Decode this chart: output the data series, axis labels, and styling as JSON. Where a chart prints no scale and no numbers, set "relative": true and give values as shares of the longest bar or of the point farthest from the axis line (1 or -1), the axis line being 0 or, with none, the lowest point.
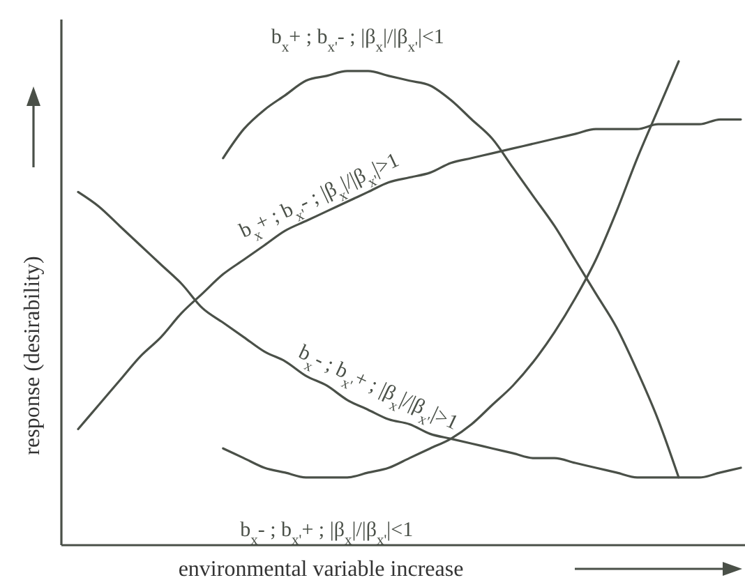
{
  "chart_data": {
    "type": "line",
    "relative": true,
    "xlabel": "environmental variable increase",
    "ylabel": "response (desirability)",
    "categories": [
      null,
      null,
      null,
      null,
      null,
      null,
      null,
      null,
      null,
      null,
      null,
      null,
      null,
      null,
      null,
      null,
      null,
      null,
      null,
      null,
      null,
      null,
      null,
      null,
      null,
      null,
      null,
      null,
      null,
      null,
      null,
      null,
      null
    ],
    "series": [
      {
        "name": "b$_{x}$+ ; b$_{x'}$- ; |β$_{x}$|/|β$_{x'}$|<1",
        "color": "#4a5048",
        "values": [
          null,
          null,
          null,
          null,
          null,
          null,
          null,
          0.8,
          0.86,
          0.9,
          0.93,
          0.96,
          0.97,
          0.98,
          0.98,
          0.97,
          0.96,
          0.95,
          0.92,
          0.88,
          0.84,
          0.78,
          0.72,
          0.66,
          0.59,
          0.52,
          0.45,
          0.36,
          0.26,
          0.14,
          null,
          null,
          null
        ]
      },
      {
        "name": "b$_{x}$+ ; b$_{x'}$- ; |β$_{x}$|/|β$_{x'}$|>1",
        "color": "#4a5048",
        "values": [
          0.24,
          0.29,
          0.34,
          0.39,
          0.43,
          0.48,
          0.52,
          0.56,
          0.59,
          0.62,
          0.65,
          0.67,
          0.69,
          0.71,
          0.73,
          0.75,
          0.76,
          0.77,
          0.79,
          0.8,
          0.81,
          0.82,
          0.83,
          0.84,
          0.85,
          0.86,
          0.86,
          0.86,
          0.87,
          0.87,
          0.87,
          0.88,
          0.88
        ]
      },
      {
        "name": "b$_{x}$- ; b$_{x'}$+ ; |β$_{x}$|/|β$_{x'}$|>1",
        "color": "#4a5048",
        "values": [
          0.73,
          0.7,
          0.66,
          0.62,
          0.58,
          0.54,
          0.49,
          0.46,
          0.43,
          0.4,
          0.38,
          0.35,
          0.33,
          0.3,
          0.28,
          0.26,
          0.25,
          0.23,
          0.22,
          0.21,
          0.2,
          0.19,
          0.18,
          0.18,
          0.17,
          0.16,
          0.15,
          0.14,
          0.14,
          0.14,
          0.14,
          0.15,
          0.16
        ]
      },
      {
        "name": "b$_{x}$- ; b$_{x'}$+ ; |β$_{x}$|/|β$_{x'}$|<1",
        "color": "#4a5048",
        "values": [
          null,
          null,
          null,
          null,
          null,
          null,
          null,
          0.2,
          0.18,
          0.16,
          0.15,
          0.14,
          0.14,
          0.14,
          0.15,
          0.16,
          0.18,
          0.2,
          0.22,
          0.25,
          0.29,
          0.33,
          0.38,
          0.44,
          0.51,
          0.59,
          0.69,
          0.8,
          0.9,
          1,
          null,
          null,
          null
        ]
      }
    ]
  }
}
